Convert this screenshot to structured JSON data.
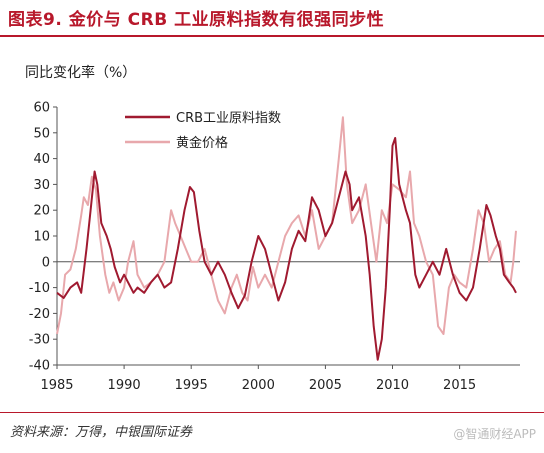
{
  "header": {
    "title": "图表9. 金价与 CRB 工业原料指数有很强同步性"
  },
  "footer": {
    "source": "资料来源：万得，中银国际证券",
    "watermark": "@智通财经APP"
  },
  "colors": {
    "accent": "#b8182b",
    "crb": "#a01a30",
    "gold": "#e8a8ac",
    "axis": "#555555"
  },
  "chart_data": {
    "type": "line",
    "ylabel": "同比变化率（%）",
    "ylim": [
      -40,
      60
    ],
    "yticks": [
      -40,
      -30,
      -20,
      -10,
      0,
      10,
      20,
      30,
      40,
      50,
      60
    ],
    "xlim": [
      1985,
      2019.5
    ],
    "xticks": [
      1985,
      1990,
      1995,
      2000,
      2005,
      2010,
      2015
    ],
    "grid": false,
    "legend": "top-center",
    "series": [
      {
        "name": "CRB工业原料指数",
        "color": "#a01a30",
        "points": [
          [
            1985.0,
            -12
          ],
          [
            1985.5,
            -14
          ],
          [
            1986.0,
            -10
          ],
          [
            1986.5,
            -8
          ],
          [
            1986.8,
            -12
          ],
          [
            1987.2,
            5
          ],
          [
            1987.5,
            20
          ],
          [
            1987.8,
            35
          ],
          [
            1988.0,
            30
          ],
          [
            1988.3,
            15
          ],
          [
            1988.7,
            10
          ],
          [
            1989.0,
            5
          ],
          [
            1989.3,
            -2
          ],
          [
            1989.7,
            -8
          ],
          [
            1990.0,
            -5
          ],
          [
            1990.3,
            -8
          ],
          [
            1990.7,
            -12
          ],
          [
            1991.0,
            -10
          ],
          [
            1991.5,
            -12
          ],
          [
            1992.0,
            -8
          ],
          [
            1992.5,
            -5
          ],
          [
            1993.0,
            -10
          ],
          [
            1993.5,
            -8
          ],
          [
            1994.0,
            5
          ],
          [
            1994.5,
            20
          ],
          [
            1994.9,
            29
          ],
          [
            1995.2,
            27
          ],
          [
            1995.6,
            12
          ],
          [
            1996.0,
            0
          ],
          [
            1996.5,
            -5
          ],
          [
            1997.0,
            0
          ],
          [
            1997.5,
            -5
          ],
          [
            1998.0,
            -12
          ],
          [
            1998.5,
            -18
          ],
          [
            1999.0,
            -13
          ],
          [
            1999.5,
            0
          ],
          [
            2000.0,
            10
          ],
          [
            2000.5,
            5
          ],
          [
            2001.0,
            -5
          ],
          [
            2001.5,
            -15
          ],
          [
            2002.0,
            -8
          ],
          [
            2002.5,
            5
          ],
          [
            2003.0,
            12
          ],
          [
            2003.5,
            8
          ],
          [
            2004.0,
            25
          ],
          [
            2004.5,
            20
          ],
          [
            2005.0,
            10
          ],
          [
            2005.5,
            15
          ],
          [
            2006.0,
            25
          ],
          [
            2006.5,
            35
          ],
          [
            2006.8,
            30
          ],
          [
            2007.0,
            20
          ],
          [
            2007.5,
            25
          ],
          [
            2008.0,
            10
          ],
          [
            2008.3,
            -5
          ],
          [
            2008.6,
            -25
          ],
          [
            2008.9,
            -38
          ],
          [
            2009.2,
            -30
          ],
          [
            2009.5,
            -10
          ],
          [
            2009.8,
            20
          ],
          [
            2010.0,
            45
          ],
          [
            2010.2,
            48
          ],
          [
            2010.5,
            30
          ],
          [
            2011.0,
            20
          ],
          [
            2011.3,
            15
          ],
          [
            2011.7,
            -5
          ],
          [
            2012.0,
            -10
          ],
          [
            2012.5,
            -5
          ],
          [
            2013.0,
            0
          ],
          [
            2013.5,
            -5
          ],
          [
            2014.0,
            5
          ],
          [
            2014.5,
            -5
          ],
          [
            2015.0,
            -12
          ],
          [
            2015.5,
            -15
          ],
          [
            2016.0,
            -10
          ],
          [
            2016.5,
            5
          ],
          [
            2017.0,
            22
          ],
          [
            2017.3,
            18
          ],
          [
            2017.7,
            10
          ],
          [
            2018.0,
            5
          ],
          [
            2018.3,
            -5
          ],
          [
            2018.7,
            -8
          ],
          [
            2019.0,
            -10
          ],
          [
            2019.2,
            -12
          ]
        ]
      },
      {
        "name": "黄金价格",
        "color": "#e8a8ac",
        "points": [
          [
            1985.0,
            -28
          ],
          [
            1985.3,
            -20
          ],
          [
            1985.6,
            -5
          ],
          [
            1986.0,
            -3
          ],
          [
            1986.4,
            5
          ],
          [
            1986.8,
            18
          ],
          [
            1987.0,
            25
          ],
          [
            1987.3,
            22
          ],
          [
            1987.6,
            33
          ],
          [
            1987.9,
            28
          ],
          [
            1988.2,
            10
          ],
          [
            1988.6,
            -5
          ],
          [
            1988.9,
            -12
          ],
          [
            1989.2,
            -8
          ],
          [
            1989.6,
            -15
          ],
          [
            1990.0,
            -10
          ],
          [
            1990.3,
            0
          ],
          [
            1990.7,
            8
          ],
          [
            1991.0,
            -5
          ],
          [
            1991.5,
            -10
          ],
          [
            1992.0,
            -8
          ],
          [
            1992.5,
            -5
          ],
          [
            1993.0,
            0
          ],
          [
            1993.5,
            20
          ],
          [
            1993.8,
            15
          ],
          [
            1994.2,
            10
          ],
          [
            1994.6,
            5
          ],
          [
            1995.0,
            0
          ],
          [
            1995.5,
            0
          ],
          [
            1996.0,
            5
          ],
          [
            1996.5,
            -5
          ],
          [
            1997.0,
            -15
          ],
          [
            1997.5,
            -20
          ],
          [
            1998.0,
            -10
          ],
          [
            1998.4,
            -5
          ],
          [
            1998.8,
            -12
          ],
          [
            1999.2,
            -15
          ],
          [
            1999.6,
            -2
          ],
          [
            2000.0,
            -10
          ],
          [
            2000.5,
            -5
          ],
          [
            2001.0,
            -10
          ],
          [
            2001.5,
            0
          ],
          [
            2002.0,
            10
          ],
          [
            2002.5,
            15
          ],
          [
            2003.0,
            18
          ],
          [
            2003.5,
            10
          ],
          [
            2004.0,
            20
          ],
          [
            2004.5,
            5
          ],
          [
            2005.0,
            10
          ],
          [
            2005.5,
            15
          ],
          [
            2006.0,
            40
          ],
          [
            2006.3,
            56
          ],
          [
            2006.6,
            30
          ],
          [
            2007.0,
            15
          ],
          [
            2007.5,
            20
          ],
          [
            2008.0,
            30
          ],
          [
            2008.4,
            15
          ],
          [
            2008.8,
            0
          ],
          [
            2009.2,
            20
          ],
          [
            2009.6,
            15
          ],
          [
            2010.0,
            30
          ],
          [
            2010.5,
            28
          ],
          [
            2011.0,
            25
          ],
          [
            2011.3,
            35
          ],
          [
            2011.6,
            15
          ],
          [
            2012.0,
            10
          ],
          [
            2012.5,
            0
          ],
          [
            2013.0,
            -5
          ],
          [
            2013.4,
            -25
          ],
          [
            2013.8,
            -28
          ],
          [
            2014.2,
            -10
          ],
          [
            2014.6,
            -5
          ],
          [
            2015.0,
            -8
          ],
          [
            2015.5,
            -10
          ],
          [
            2016.0,
            5
          ],
          [
            2016.4,
            20
          ],
          [
            2016.8,
            15
          ],
          [
            2017.2,
            0
          ],
          [
            2017.6,
            5
          ],
          [
            2018.0,
            8
          ],
          [
            2018.4,
            -5
          ],
          [
            2018.8,
            -8
          ],
          [
            2019.0,
            0
          ],
          [
            2019.2,
            12
          ]
        ]
      }
    ]
  }
}
